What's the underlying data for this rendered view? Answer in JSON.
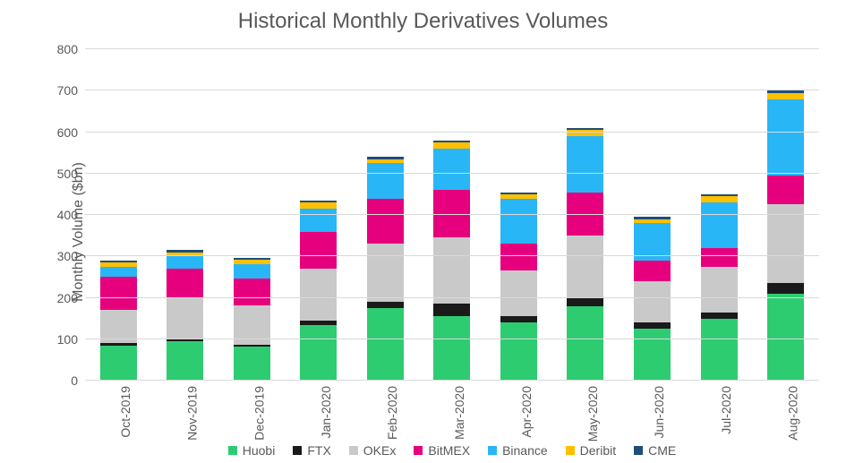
{
  "chart": {
    "type": "stacked-bar",
    "title": "Historical Monthly Derivatives Volumes",
    "title_fontsize": 24,
    "title_color": "#595959",
    "ylabel": "Monthly Volume ($bn)",
    "ylabel_fontsize": 16,
    "label_color": "#595959",
    "tick_fontsize": 14,
    "legend_fontsize": 14,
    "background_color": "#ffffff",
    "grid_color": "#d9d9d9",
    "ylim": [
      0,
      800
    ],
    "ytick_step": 100,
    "bar_width_ratio": 0.55,
    "categories": [
      "Oct-2019",
      "Nov-2019",
      "Dec-2019",
      "Jan-2020",
      "Feb-2020",
      "Mar-2020",
      "Apr-2020",
      "May-2020",
      "Jun-2020",
      "Jul-2020",
      "Aug-2020"
    ],
    "series": [
      {
        "name": "Huobi",
        "color": "#2ecc71"
      },
      {
        "name": "FTX",
        "color": "#1a1a1a"
      },
      {
        "name": "OKEx",
        "color": "#c9c9c9"
      },
      {
        "name": "BitMEX",
        "color": "#e6007e"
      },
      {
        "name": "Binance",
        "color": "#29b6f6"
      },
      {
        "name": "Deribit",
        "color": "#ffc000"
      },
      {
        "name": "CME",
        "color": "#1f4e79"
      }
    ],
    "values": {
      "Huobi": [
        85,
        95,
        82,
        135,
        175,
        155,
        140,
        180,
        125,
        150,
        210
      ],
      "FTX": [
        5,
        5,
        5,
        10,
        15,
        30,
        15,
        20,
        15,
        15,
        25
      ],
      "OKEx": [
        80,
        100,
        95,
        125,
        140,
        160,
        110,
        150,
        100,
        110,
        190
      ],
      "BitMEX": [
        80,
        70,
        65,
        90,
        110,
        115,
        65,
        105,
        50,
        45,
        70
      ],
      "Binance": [
        25,
        30,
        35,
        55,
        85,
        100,
        110,
        135,
        90,
        110,
        185
      ],
      "Deribit": [
        10,
        10,
        10,
        15,
        10,
        15,
        10,
        15,
        10,
        15,
        15
      ],
      "CME": [
        5,
        5,
        5,
        5,
        5,
        5,
        5,
        5,
        5,
        5,
        5
      ]
    }
  }
}
